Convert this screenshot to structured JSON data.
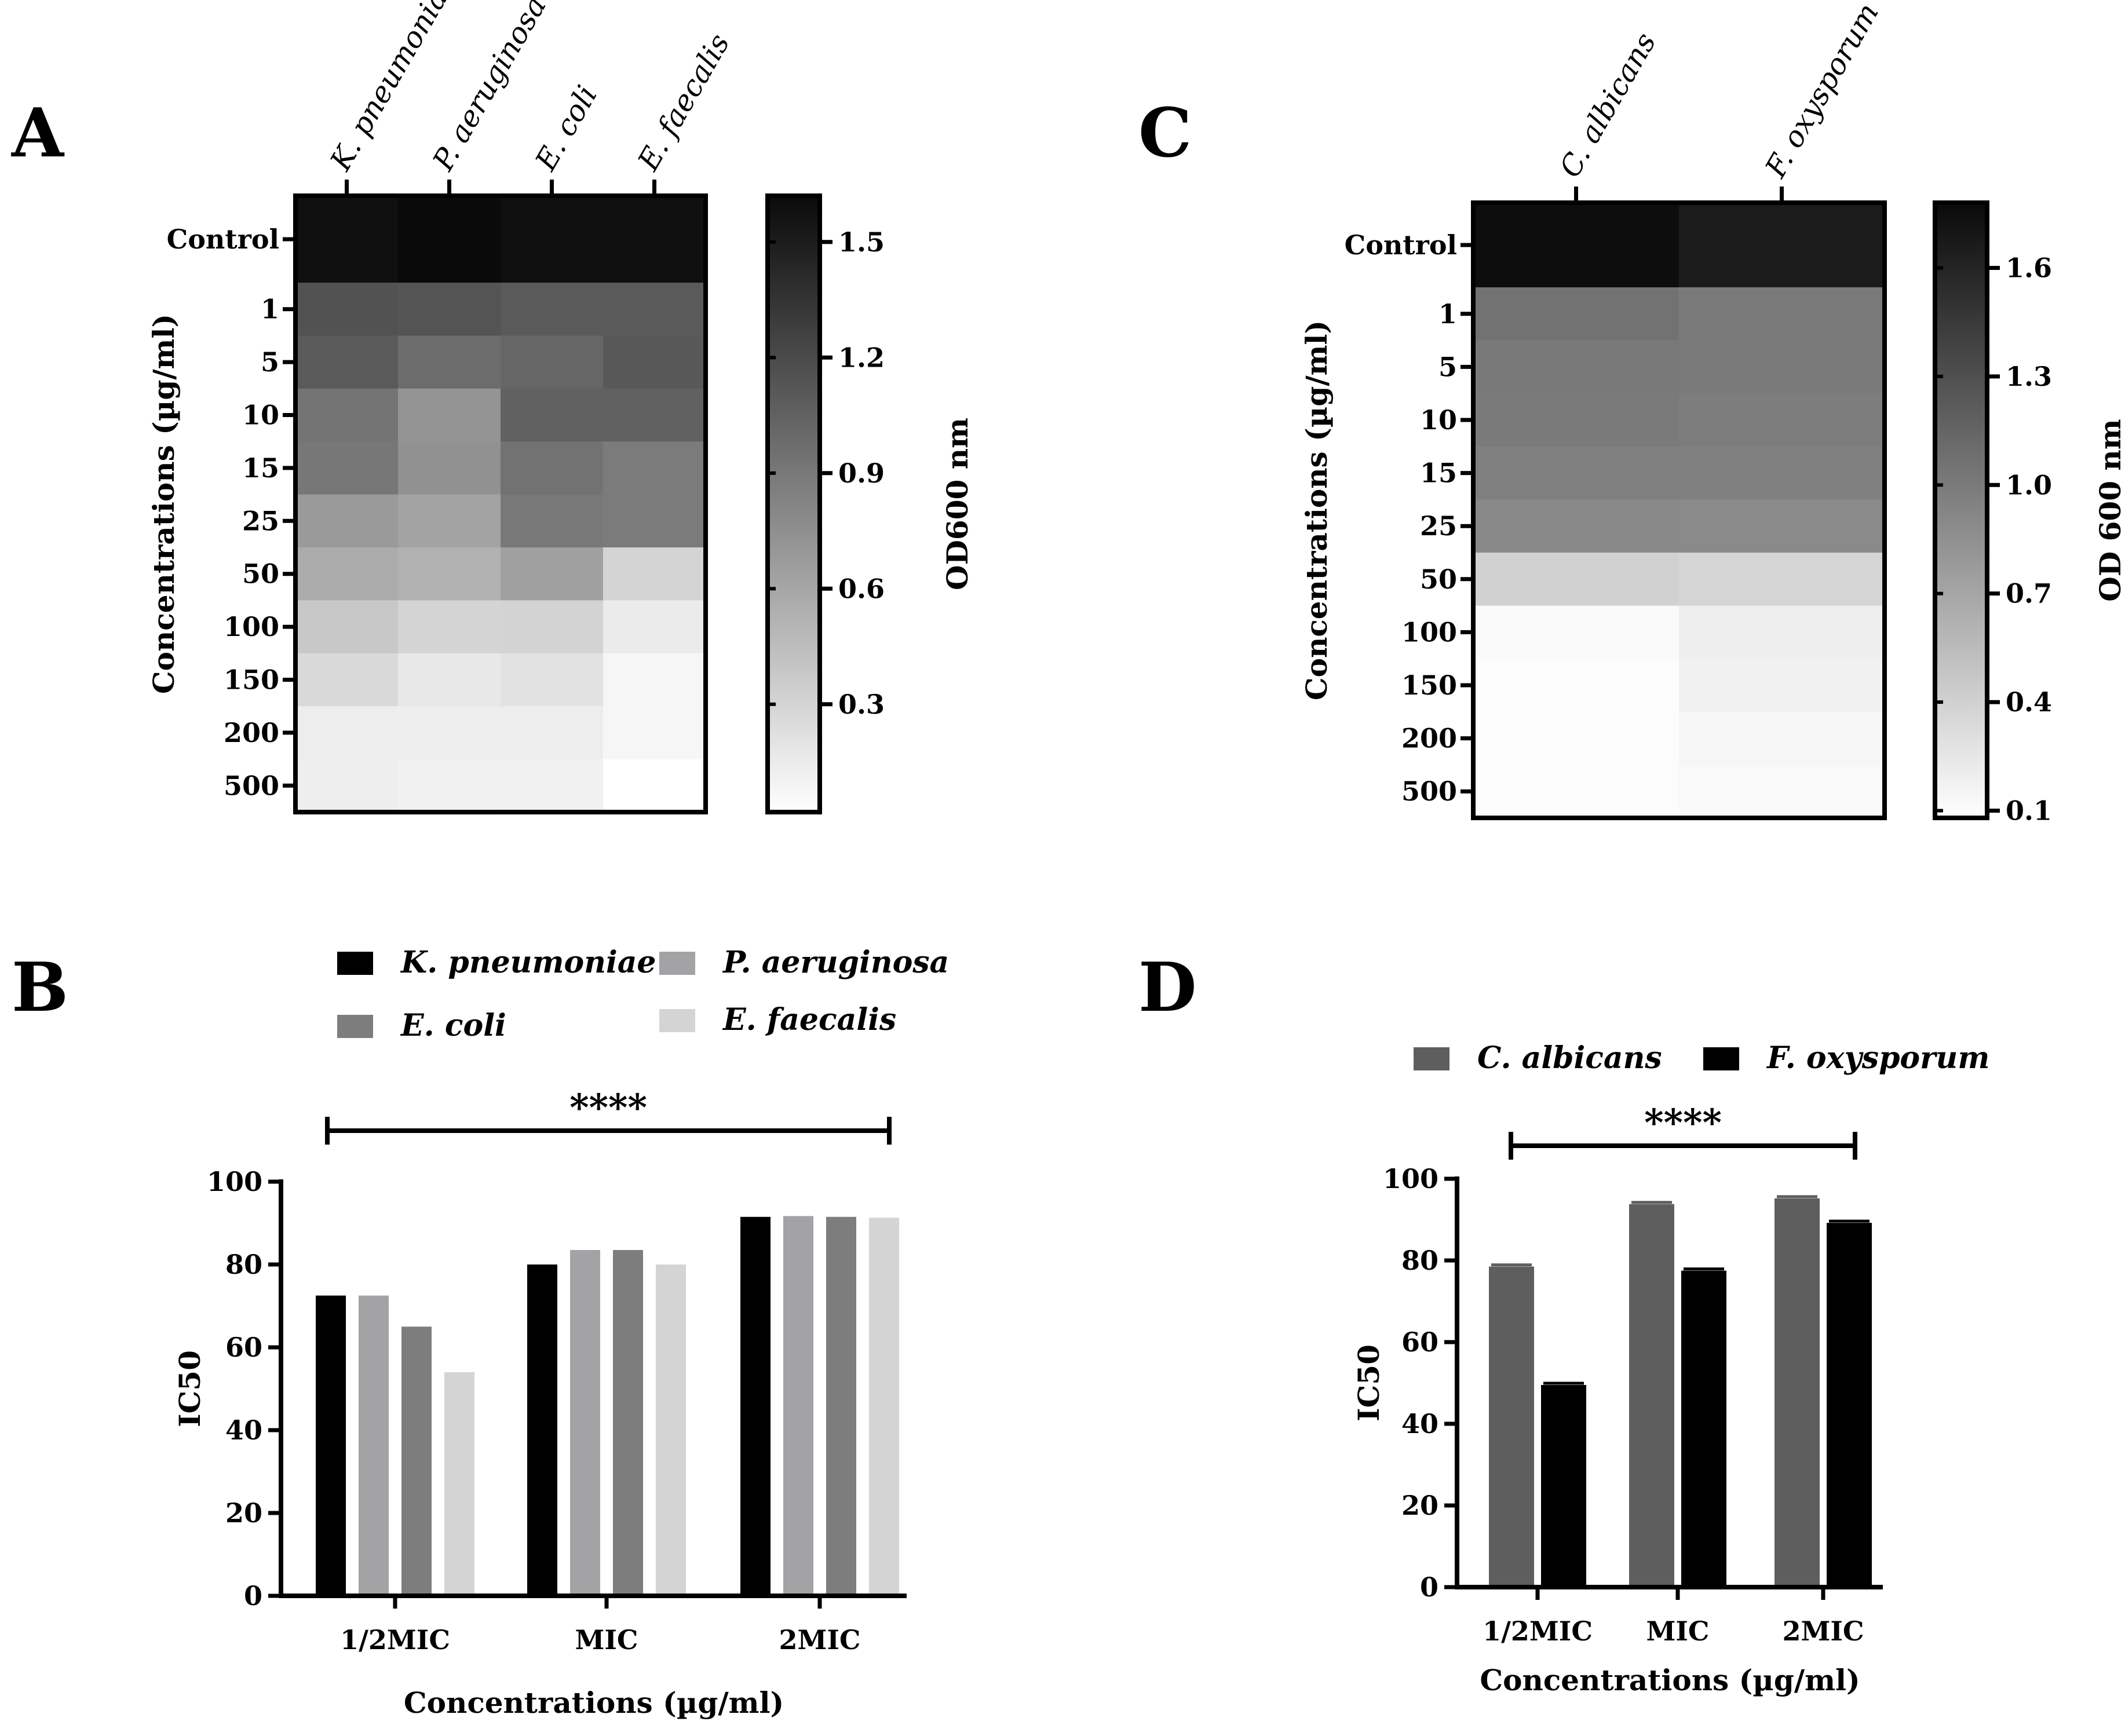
{
  "chart_data": [
    {
      "panel": "A",
      "type": "heatmap",
      "columns": [
        "K. pneumoniae",
        "P. aeruginosa",
        "E. coli",
        "E. faecalis"
      ],
      "rows": [
        "Control",
        "1",
        "5",
        "10",
        "15",
        "25",
        "50",
        "100",
        "150",
        "200",
        "500"
      ],
      "values": [
        [
          1.58,
          1.62,
          1.59,
          1.59
        ],
        [
          1.15,
          1.14,
          1.1,
          1.1
        ],
        [
          1.1,
          0.98,
          1.02,
          1.11
        ],
        [
          0.93,
          0.72,
          1.05,
          1.05
        ],
        [
          0.91,
          0.74,
          0.94,
          0.88
        ],
        [
          0.68,
          0.62,
          0.9,
          0.88
        ],
        [
          0.56,
          0.53,
          0.64,
          0.3
        ],
        [
          0.38,
          0.3,
          0.31,
          0.15
        ],
        [
          0.27,
          0.17,
          0.21,
          0.08
        ],
        [
          0.14,
          0.13,
          0.14,
          0.08
        ],
        [
          0.13,
          0.11,
          0.12,
          0.02
        ]
      ],
      "ylabel": "Concentrations (µg/ml)",
      "colorbar": {
        "label": "OD600 nm",
        "min": 0.02,
        "max": 1.62,
        "ticks": [
          "0.3",
          "0.6",
          "0.9",
          "1.2",
          "1.5"
        ],
        "tick_values": [
          0.3,
          0.6,
          0.9,
          1.2,
          1.5
        ]
      }
    },
    {
      "panel": "B",
      "type": "bar",
      "categories": [
        "1/2MIC",
        "MIC",
        "2MIC"
      ],
      "series": [
        {
          "name": "K. pneumoniae",
          "color": "#000000",
          "values": [
            72.5,
            80.0,
            91.5
          ]
        },
        {
          "name": "P. aeruginosa",
          "color": "#a3a3a5",
          "values": [
            72.5,
            83.5,
            91.7
          ]
        },
        {
          "name": "E. coli",
          "color": "#7d7d7d",
          "values": [
            65.0,
            83.5,
            91.5
          ]
        },
        {
          "name": "E. faecalis",
          "color": "#d4d4d4",
          "values": [
            54.0,
            80.0,
            91.3
          ]
        }
      ],
      "xlabel": "Concentrations (µg/ml)",
      "ylabel": "IC50",
      "ylim": [
        0,
        100
      ],
      "yticks": [
        "0",
        "20",
        "40",
        "60",
        "80",
        "100"
      ],
      "significance": "****"
    },
    {
      "panel": "C",
      "type": "heatmap",
      "columns": [
        "C. albicans",
        "F. oxysporum"
      ],
      "rows": [
        "Control",
        "1",
        "5",
        "10",
        "15",
        "25",
        "50",
        "100",
        "150",
        "200",
        "500"
      ],
      "values": [
        [
          1.76,
          1.66
        ],
        [
          1.06,
          1.0
        ],
        [
          1.01,
          1.0
        ],
        [
          1.0,
          0.98
        ],
        [
          0.96,
          0.96
        ],
        [
          0.9,
          0.89
        ],
        [
          0.4,
          0.37
        ],
        [
          0.12,
          0.2
        ],
        [
          0.1,
          0.18
        ],
        [
          0.1,
          0.14
        ],
        [
          0.1,
          0.12
        ]
      ],
      "ylabel": "Concentrations (µg/ml)",
      "colorbar": {
        "label": "OD 600 nm",
        "min": 0.08,
        "max": 1.78,
        "ticks": [
          "0.1",
          "0.4",
          "0.7",
          "1.0",
          "1.3",
          "1.6"
        ],
        "tick_values": [
          0.1,
          0.4,
          0.7,
          1.0,
          1.3,
          1.6
        ]
      }
    },
    {
      "panel": "D",
      "type": "bar",
      "categories": [
        "1/2MIC",
        "MIC",
        "2MIC"
      ],
      "series": [
        {
          "name": "C. albicans",
          "color": "#5e5e5e",
          "values": [
            78.5,
            93.8,
            95.2
          ]
        },
        {
          "name": "F. oxysporum",
          "color": "#000000",
          "values": [
            49.5,
            77.5,
            89.2
          ]
        }
      ],
      "xlabel": "Concentrations (µg/ml)",
      "ylabel": "IC50",
      "ylim": [
        0,
        100
      ],
      "yticks": [
        "0",
        "20",
        "40",
        "60",
        "80",
        "100"
      ],
      "significance": "****"
    }
  ]
}
